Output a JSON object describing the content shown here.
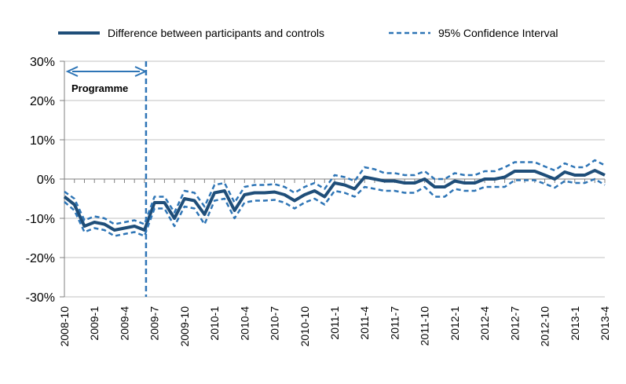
{
  "legend": {
    "main_label": "Difference between participants and controls",
    "ci_label": "95% Confidence Interval"
  },
  "annotation": {
    "programme_label": "Programme",
    "programme_end_x": "2009-6"
  },
  "colors": {
    "series": "#1f4e79",
    "ci": "#2e75b6",
    "grid": "#c0c0c0",
    "arrow": "#2e75b6"
  },
  "chart_data": {
    "type": "line",
    "title": "",
    "xlabel": "",
    "ylabel": "",
    "ylim": [
      -30,
      30
    ],
    "y_ticks": [
      "30%",
      "20%",
      "10%",
      "0%",
      "-10%",
      "-20%",
      "-30%"
    ],
    "y_tick_values": [
      30,
      20,
      10,
      0,
      -10,
      -20,
      -30
    ],
    "x": [
      "2008-10",
      "2008-11",
      "2008-12",
      "2009-1",
      "2009-2",
      "2009-3",
      "2009-4",
      "2009-5",
      "2009-6",
      "2009-7",
      "2009-8",
      "2009-9",
      "2009-10",
      "2009-11",
      "2009-12",
      "2010-1",
      "2010-2",
      "2010-3",
      "2010-4",
      "2010-5",
      "2010-6",
      "2010-7",
      "2010-8",
      "2010-9",
      "2010-10",
      "2010-11",
      "2010-12",
      "2011-1",
      "2011-2",
      "2011-3",
      "2011-4",
      "2011-5",
      "2011-6",
      "2011-7",
      "2011-8",
      "2011-9",
      "2011-10",
      "2011-11",
      "2011-12",
      "2012-1",
      "2012-2",
      "2012-3",
      "2012-4",
      "2012-5",
      "2012-6",
      "2012-7",
      "2012-8",
      "2012-9",
      "2012-10",
      "2012-11",
      "2012-12",
      "2013-1",
      "2013-2",
      "2013-3",
      "2013-4"
    ],
    "x_tick_labels": [
      "2008-10",
      "2009-1",
      "2009-4",
      "2009-7",
      "2009-10",
      "2010-1",
      "2010-4",
      "2010-7",
      "2010-10",
      "2011-1",
      "2011-4",
      "2011-7",
      "2011-10",
      "2012-1",
      "2012-4",
      "2012-7",
      "2012-10",
      "2013-1",
      "2013-4"
    ],
    "series": [
      {
        "name": "Difference between participants and controls",
        "style": "solid",
        "values": [
          -4.5,
          -6.5,
          -12,
          -11,
          -11.5,
          -13,
          -12.5,
          -12,
          -13,
          -6,
          -6,
          -10,
          -5,
          -5.5,
          -9,
          -3.5,
          -3,
          -8,
          -4,
          -3.5,
          -3.5,
          -3.3,
          -4,
          -5.5,
          -4,
          -3,
          -4.5,
          -1,
          -1.5,
          -2.5,
          0.5,
          0,
          -0.5,
          -0.5,
          -1,
          -1,
          0,
          -2,
          -2,
          -0.5,
          -1,
          -1,
          0,
          0,
          0.5,
          2,
          2,
          2,
          1,
          0,
          1.8,
          1,
          1,
          2.2,
          1
        ]
      },
      {
        "name": "95% Confidence Interval",
        "style": "dashed",
        "values": [
          -3.2,
          -5,
          -10.5,
          -9.5,
          -10,
          -11.5,
          -11,
          -10.5,
          -11.5,
          -4.5,
          -4.5,
          -8.5,
          -3,
          -3.5,
          -7,
          -1.5,
          -1,
          -6,
          -2,
          -1.5,
          -1.5,
          -1.3,
          -2,
          -3.5,
          -2,
          -1,
          -2.5,
          1,
          0.5,
          -0.5,
          3,
          2.5,
          1.5,
          1.5,
          1,
          1,
          2,
          0,
          0,
          1.5,
          1,
          1,
          2,
          2,
          3,
          4.3,
          4.3,
          4.3,
          3.2,
          2.2,
          4,
          3,
          3,
          4.8,
          3.5
        ]
      },
      {
        "name": "",
        "style": "dashed",
        "values": [
          -5.8,
          -8,
          -13.5,
          -12.5,
          -13,
          -14.5,
          -14,
          -13.5,
          -14.5,
          -7.5,
          -7.5,
          -12,
          -7,
          -7.5,
          -11.5,
          -5.5,
          -5,
          -10,
          -6,
          -5.5,
          -5.5,
          -5.3,
          -6,
          -7.5,
          -6,
          -5,
          -6.5,
          -3,
          -3.5,
          -4.5,
          -2,
          -2.5,
          -3,
          -3,
          -3.5,
          -3.5,
          -2,
          -4.5,
          -4.5,
          -2.5,
          -3,
          -3,
          -2,
          -2,
          -2,
          -0.3,
          -0.3,
          -0.3,
          -1.2,
          -2.2,
          -0.5,
          -1,
          -1,
          0,
          -1.5
        ]
      }
    ]
  }
}
